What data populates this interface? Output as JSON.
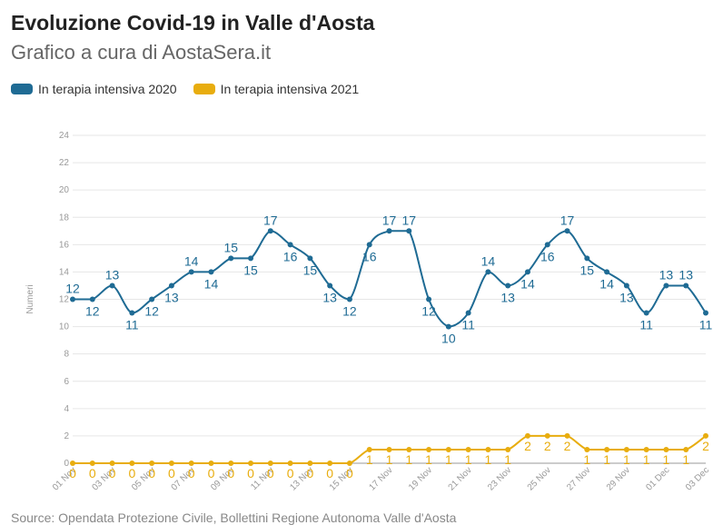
{
  "header": {
    "title": "Evoluzione Covid-19 in Valle d'Aosta",
    "subtitle": "Grafico a cura di AostaSera.it"
  },
  "footer": {
    "source": "Source: Opendata Protezione Civile, Bollettini Regione Autonoma Valle d'Aosta"
  },
  "colors": {
    "series_2020": "#1f6b94",
    "series_2021": "#e8ad0f",
    "grid": "#e6e6e6"
  },
  "chart_data": {
    "type": "line",
    "title": "Evoluzione Covid-19 in Valle d'Aosta",
    "subtitle": "Grafico a cura di AostaSera.it",
    "ylabel": "Numeri",
    "xlabel": "",
    "ylim": [
      0,
      24
    ],
    "yticks": [
      0,
      2,
      4,
      6,
      8,
      10,
      12,
      14,
      16,
      18,
      20,
      22,
      24
    ],
    "grid": true,
    "legend_position": "top-left",
    "x_tick_labels": [
      "01 Nov",
      "03 Nov",
      "05 Nov",
      "07 Nov",
      "09 Nov",
      "11 Nov",
      "13 Nov",
      "15 Nov",
      "17 Nov",
      "19 Nov",
      "21 Nov",
      "23 Nov",
      "25 Nov",
      "27 Nov",
      "29 Nov",
      "01 Dec",
      "03 Dec"
    ],
    "x": [
      "01 Nov",
      "02 Nov",
      "03 Nov",
      "04 Nov",
      "05 Nov",
      "06 Nov",
      "07 Nov",
      "08 Nov",
      "09 Nov",
      "10 Nov",
      "11 Nov",
      "12 Nov",
      "13 Nov",
      "14 Nov",
      "15 Nov",
      "16 Nov",
      "17 Nov",
      "18 Nov",
      "19 Nov",
      "20 Nov",
      "21 Nov",
      "22 Nov",
      "23 Nov",
      "24 Nov",
      "25 Nov",
      "26 Nov",
      "27 Nov",
      "28 Nov",
      "29 Nov",
      "30 Nov",
      "01 Dec",
      "02 Dec",
      "03 Dec"
    ],
    "series": [
      {
        "name": "In terapia intensiva 2020",
        "values": [
          12,
          12,
          13,
          11,
          12,
          13,
          14,
          14,
          15,
          15,
          17,
          16,
          15,
          13,
          12,
          16,
          17,
          17,
          12,
          10,
          11,
          14,
          13,
          14,
          16,
          17,
          15,
          14,
          13,
          11,
          13,
          13,
          11
        ]
      },
      {
        "name": "In terapia intensiva 2021",
        "values": [
          0,
          0,
          0,
          0,
          0,
          0,
          0,
          0,
          0,
          0,
          0,
          0,
          0,
          0,
          0,
          1,
          1,
          1,
          1,
          1,
          1,
          1,
          1,
          2,
          2,
          2,
          1,
          1,
          1,
          1,
          1,
          1,
          2
        ]
      }
    ]
  }
}
